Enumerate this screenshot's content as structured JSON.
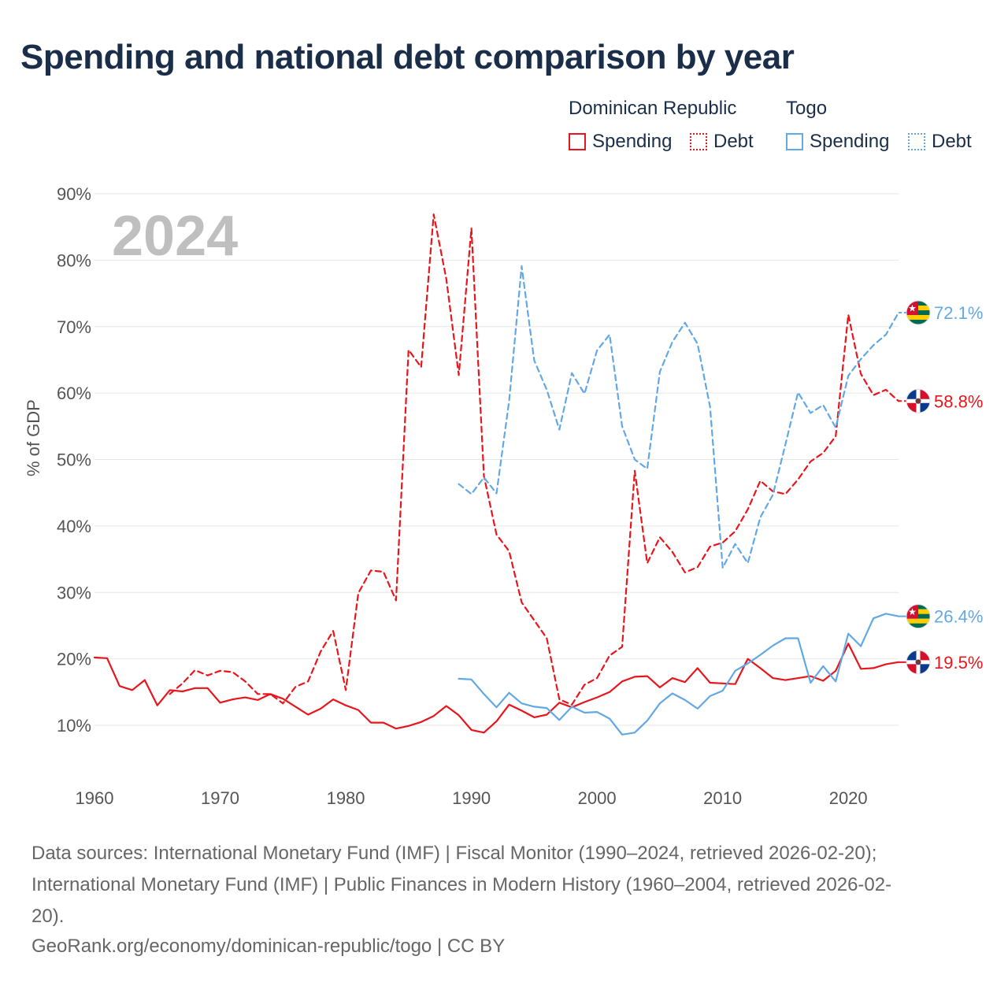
{
  "title": "Spending and national debt comparison by year",
  "legend": {
    "group_dr": "Dominican Republic",
    "group_tg": "Togo",
    "dr_spending": "Spending",
    "dr_debt": "Debt",
    "tg_spending": "Spending",
    "tg_debt": "Debt"
  },
  "colors": {
    "dr": "#e8161c",
    "tg": "#62a8e5"
  },
  "footer": {
    "line1": "Data sources: International Monetary Fund (IMF) | Fiscal Monitor (1990–2024, retrieved 2026-02-20);",
    "line2": "International Monetary Fund (IMF) | Public Finances in Modern History (1960–2004, retrieved 2026-02-",
    "line3": "20).",
    "line4": "GeoRank.org/economy/dominican-republic/togo | CC BY"
  },
  "chart_data": {
    "type": "line",
    "title": "Spending and national debt comparison by year",
    "year_label": "2024",
    "xlabel": "",
    "ylabel": "% of GDP",
    "xlim": [
      1960,
      2024
    ],
    "ylim": [
      10,
      90
    ],
    "xticks": [
      "1960",
      "1970",
      "1980",
      "1990",
      "2000",
      "2010",
      "2020"
    ],
    "yticks": [
      "10%",
      "20%",
      "30%",
      "40%",
      "50%",
      "60%",
      "70%",
      "80%",
      "90%"
    ],
    "series": [
      {
        "name": "Dominican Republic Spending",
        "key": "dr_spending",
        "color": "#e8161c",
        "dash": "solid",
        "end_label": "19.5%",
        "start_year": 1960,
        "values": [
          20.2,
          20.1,
          15.9,
          15.3,
          16.8,
          13.0,
          15.3,
          15.1,
          15.6,
          15.6,
          13.4,
          13.9,
          14.2,
          13.8,
          14.7,
          14.0,
          12.8,
          11.6,
          12.5,
          13.9,
          13.0,
          12.3,
          10.4,
          10.4,
          9.5,
          9.9,
          10.5,
          11.4,
          12.9,
          11.5,
          9.3,
          8.9,
          10.6,
          13.1,
          12.2,
          11.2,
          11.6,
          13.4,
          12.7,
          13.5,
          14.2,
          15.0,
          16.6,
          17.3,
          17.4,
          15.7,
          17.1,
          16.5,
          18.6,
          16.4,
          16.3,
          16.2,
          20.0,
          18.6,
          17.1,
          16.8,
          17.1,
          17.4,
          16.7,
          18.2,
          22.3,
          18.5,
          18.6,
          19.2,
          19.5
        ]
      },
      {
        "name": "Dominican Republic Debt",
        "key": "dr_debt",
        "color": "#e8161c",
        "dash": "dashed",
        "end_label": "58.8%",
        "start_year": 1966,
        "values": [
          14.7,
          16.3,
          18.3,
          17.5,
          18.2,
          18.0,
          16.6,
          14.7,
          14.7,
          13.3,
          15.8,
          16.6,
          21.1,
          24.2,
          15.3,
          29.9,
          33.3,
          33.1,
          28.8,
          66.5,
          63.9,
          86.9,
          77.2,
          62.7,
          84.8,
          47.5,
          38.7,
          36.2,
          28.5,
          25.8,
          23.1,
          13.9,
          13.1,
          16.1,
          17.1,
          20.5,
          21.8,
          48.3,
          34.4,
          38.3,
          36.1,
          33.0,
          33.8,
          36.9,
          37.5,
          39.2,
          42.5,
          46.8,
          45.2,
          44.8,
          47.0,
          49.7,
          51.0,
          53.5,
          71.8,
          62.9,
          59.7,
          60.5,
          58.8
        ]
      },
      {
        "name": "Togo Spending",
        "key": "tg_spending",
        "color": "#62a8e5",
        "dash": "solid",
        "end_label": "26.4%",
        "start_year": 1989,
        "values": [
          17.0,
          16.9,
          14.7,
          12.7,
          14.9,
          13.3,
          12.8,
          12.6,
          10.8,
          12.8,
          11.9,
          12.0,
          11.0,
          8.6,
          8.9,
          10.7,
          13.3,
          14.8,
          13.8,
          12.5,
          14.4,
          15.2,
          18.2,
          19.3,
          20.6,
          22.0,
          23.1,
          23.1,
          16.4,
          18.9,
          16.6,
          23.8,
          21.9,
          26.1,
          26.8,
          26.4
        ]
      },
      {
        "name": "Togo Debt",
        "key": "tg_debt",
        "color": "#62a8e5",
        "dash": "dashed",
        "end_label": "72.1%",
        "start_year": 1989,
        "values": [
          46.3,
          44.8,
          47.3,
          44.9,
          58.8,
          79.1,
          64.9,
          60.5,
          54.5,
          63.0,
          59.9,
          66.4,
          68.8,
          55.0,
          50.0,
          48.6,
          63.2,
          67.7,
          70.6,
          67.4,
          57.9,
          33.7,
          37.3,
          34.4,
          41.3,
          44.7,
          52.3,
          60.1,
          57.0,
          58.2,
          54.8,
          62.6,
          65.1,
          67.2,
          68.8,
          72.1
        ]
      }
    ]
  }
}
